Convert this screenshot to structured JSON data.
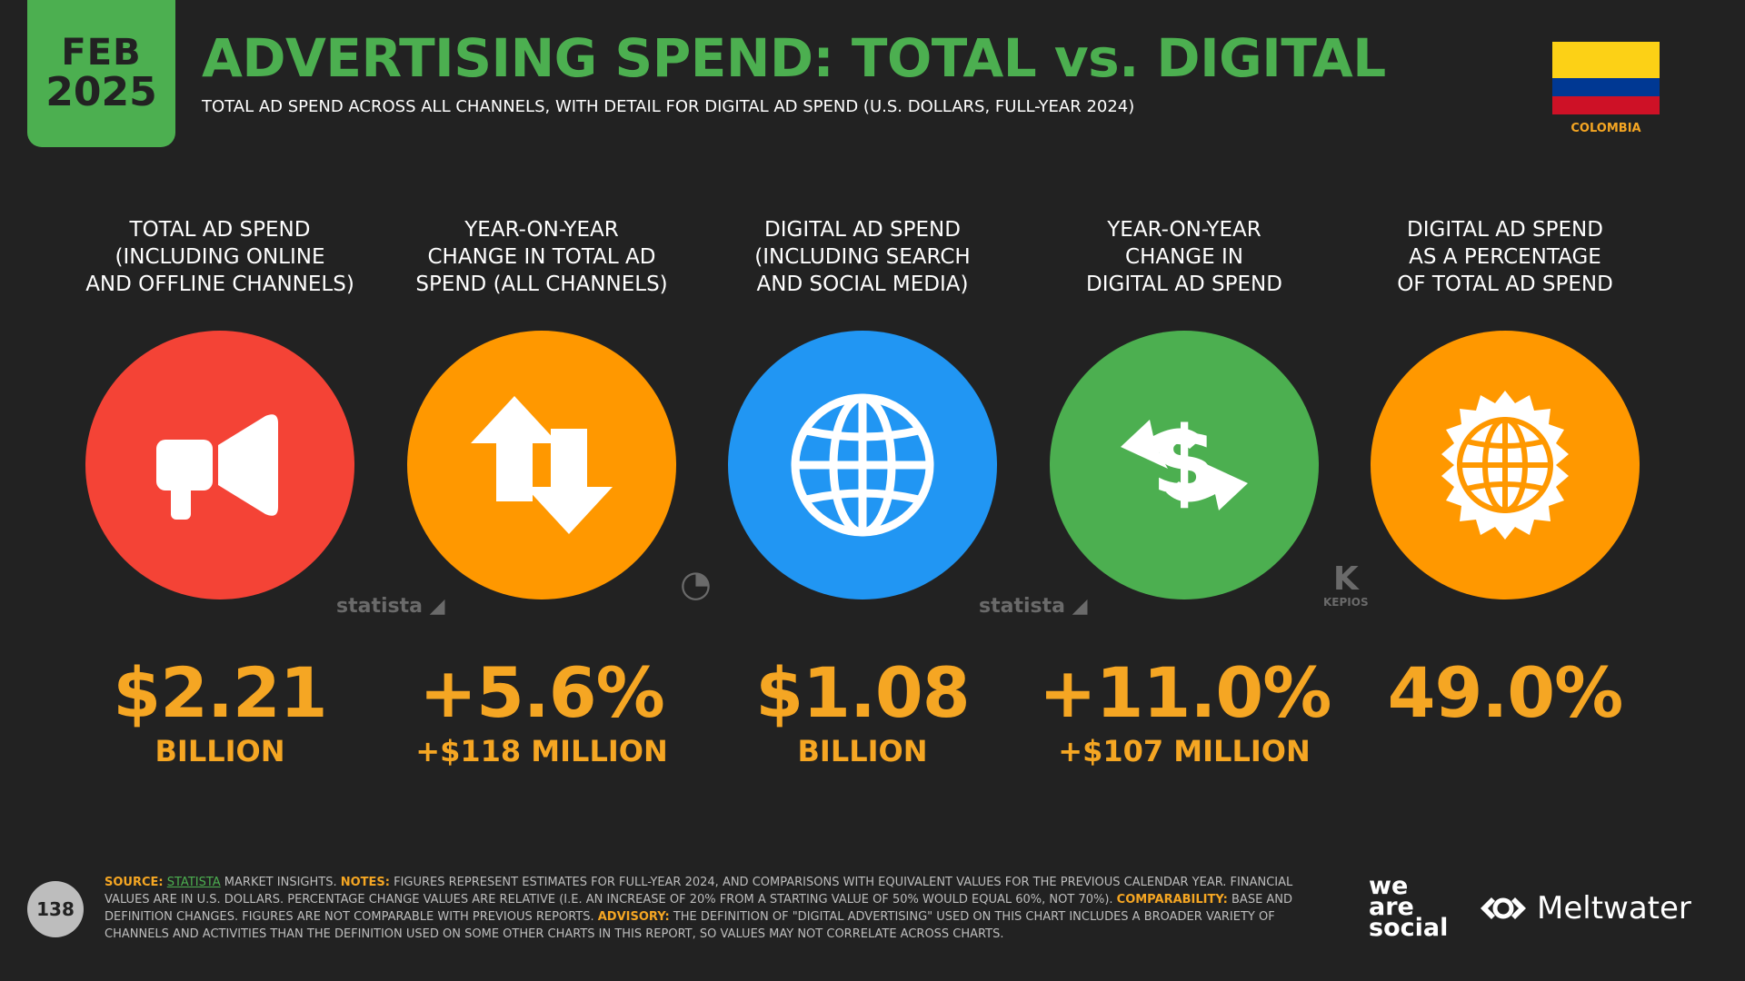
{
  "badge": {
    "month": "FEB",
    "year": "2025"
  },
  "header": {
    "title": "ADVERTISING SPEND: TOTAL vs. DIGITAL",
    "subtitle": "TOTAL AD SPEND ACROSS ALL CHANNELS, WITH DETAIL FOR DIGITAL AD SPEND (U.S. DOLLARS, FULL-YEAR 2024)"
  },
  "country": {
    "name": "COLOMBIA",
    "flag_colors": [
      "#fcd116",
      "#003893",
      "#ce1126"
    ]
  },
  "metrics": [
    {
      "label_lines": [
        "TOTAL AD SPEND",
        "(INCLUDING ONLINE",
        "AND OFFLINE CHANNELS)"
      ],
      "value": "$2.21",
      "unit": "BILLION",
      "color": "#f44336",
      "icon": "megaphone-icon"
    },
    {
      "label_lines": [
        "YEAR-ON-YEAR",
        "CHANGE IN TOTAL AD",
        "SPEND (ALL CHANNELS)"
      ],
      "value": "+5.6%",
      "unit": "+$118 MILLION",
      "color": "#ff9800",
      "icon": "up-down-arrows-icon"
    },
    {
      "label_lines": [
        "DIGITAL AD SPEND",
        "(INCLUDING SEARCH",
        "AND SOCIAL MEDIA)"
      ],
      "value": "$1.08",
      "unit": "BILLION",
      "color": "#2196f3",
      "icon": "globe-icon"
    },
    {
      "label_lines": [
        "YEAR-ON-YEAR",
        "CHANGE IN",
        "DIGITAL AD SPEND"
      ],
      "value": "+11.0%",
      "unit": "+$107 MILLION",
      "color": "#4caf50",
      "icon": "dollar-exchange-icon"
    },
    {
      "label_lines": [
        "DIGITAL AD SPEND",
        "AS A PERCENTAGE",
        "OF TOTAL AD SPEND"
      ],
      "value": "49.0%",
      "unit": "",
      "color": "#ff9800",
      "icon": "globe-badge-icon"
    }
  ],
  "source_marks": {
    "statista": "statista",
    "kepios": "KEPIOS"
  },
  "page_number": "138",
  "footnote": {
    "source_label": "SOURCE:",
    "source_link": "STATISTA",
    "source_text": " MARKET INSIGHTS. ",
    "notes_label": "NOTES:",
    "notes_text": " FIGURES REPRESENT ESTIMATES FOR FULL-YEAR 2024, AND COMPARISONS WITH EQUIVALENT VALUES FOR THE PREVIOUS CALENDAR YEAR. FINANCIAL VALUES ARE IN U.S. DOLLARS. PERCENTAGE CHANGE VALUES ARE RELATIVE (I.E. AN INCREASE OF 20% FROM A STARTING VALUE OF 50% WOULD EQUAL 60%, NOT 70%). ",
    "comparability_label": "COMPARABILITY:",
    "comparability_text": " BASE AND DEFINITION CHANGES. FIGURES ARE NOT COMPARABLE WITH PREVIOUS REPORTS. ",
    "advisory_label": "ADVISORY:",
    "advisory_text": " THE DEFINITION OF \"DIGITAL ADVERTISING\" USED ON THIS CHART INCLUDES A BROADER VARIETY OF CHANNELS AND ACTIVITIES THAN THE DEFINITION USED ON SOME OTHER CHARTS IN THIS REPORT, SO VALUES MAY NOT CORRELATE ACROSS CHARTS."
  },
  "brands": {
    "was_line1": "we",
    "was_line2": "are",
    "was_line3": "social",
    "meltwater": "Meltwater"
  }
}
